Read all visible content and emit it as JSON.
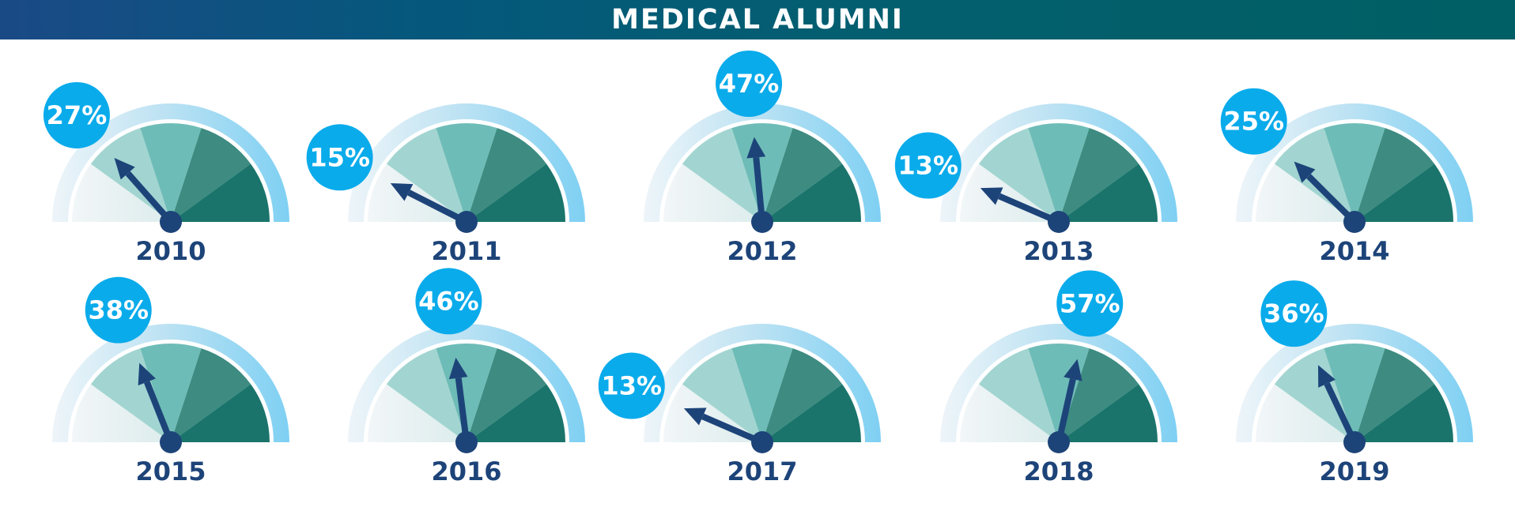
{
  "header": {
    "title": "MEDICAL ALUMNI"
  },
  "colors": {
    "header_start": "#1a4a86",
    "header_end": "#005f64",
    "outer_arc": "#7fd0f3",
    "segment_1": "#dcecec",
    "segment_2": "#a2d5d1",
    "segment_3": "#6ebcb7",
    "segment_4": "#3d8b81",
    "segment_5": "#1a746b",
    "needle": "#1d4479",
    "bubble": "#0aabeb",
    "label_text": "#1d4479"
  },
  "icons": {
    "needle": "gauge-needle-icon",
    "pivot": "gauge-pivot-icon"
  },
  "chart_data": {
    "type": "gauge",
    "title": "MEDICAL ALUMNI",
    "unit": "%",
    "range": [
      0,
      100
    ],
    "categories": [
      "2010",
      "2011",
      "2012",
      "2013",
      "2014",
      "2015",
      "2016",
      "2017",
      "2018",
      "2019"
    ],
    "values": [
      27,
      15,
      47,
      13,
      25,
      38,
      46,
      13,
      57,
      36
    ],
    "labels": [
      "27%",
      "15%",
      "47%",
      "13%",
      "25%",
      "38%",
      "46%",
      "13%",
      "57%",
      "36%"
    ]
  }
}
